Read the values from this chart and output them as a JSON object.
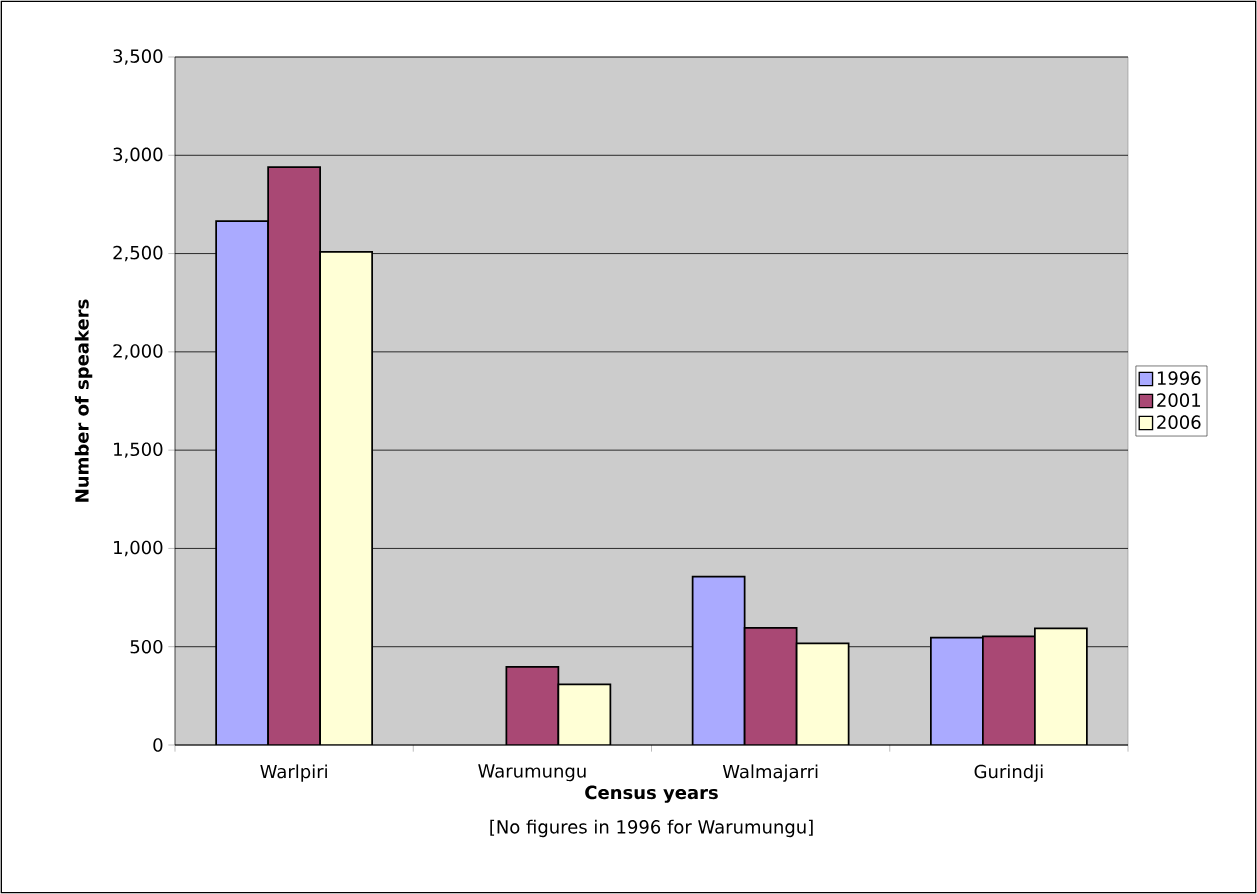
{
  "chart_data": {
    "type": "bar",
    "xlabel": "Census years",
    "ylabel": "Number of speakers",
    "annotations": [
      "[No figures in 1996 for Warumungu]"
    ],
    "categories": [
      "Warlpiri",
      "Warumungu",
      "Walmajarri",
      "Gurindji"
    ],
    "series": [
      {
        "name": "1996",
        "color": "#aaaaff",
        "values": [
          2665,
          null,
          857,
          546
        ]
      },
      {
        "name": "2001",
        "color": "#a94874",
        "values": [
          2940,
          398,
          596,
          553
        ]
      },
      {
        "name": "2006",
        "color": "#ffffd6",
        "values": [
          2509,
          309,
          517,
          593
        ]
      }
    ],
    "ylim": [
      0,
      3500
    ],
    "yticks": [
      0,
      500,
      {
        "value": 1000,
        "label": "1,000"
      },
      {
        "value": 1500,
        "label": "1,500"
      },
      {
        "value": 2000,
        "label": "2,000"
      },
      {
        "value": 2500,
        "label": "2,500"
      },
      {
        "value": 3000,
        "label": "3,000"
      },
      {
        "value": 3500,
        "label": "3,500"
      }
    ],
    "grid": "y",
    "legend": "right"
  }
}
